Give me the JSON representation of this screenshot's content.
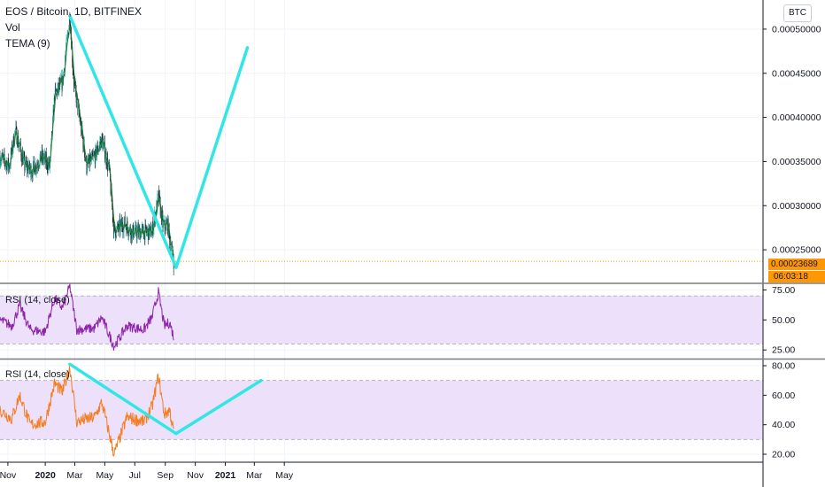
{
  "header": {
    "symbol_line": "EOS / Bitcoin, 1D, BITFINEX",
    "vol_label": "Vol",
    "tema_label": "TEMA (9)"
  },
  "currency_badge": "BTC",
  "last_price_tag": "0.00023689",
  "countdown_tag": "06:03:18",
  "colors": {
    "up": "#26a69a",
    "down": "#131722",
    "tema": "#1e7b31",
    "trend_line": "#33e6e6",
    "rsi1": "#8e24aa",
    "rsi2": "#f57c1f",
    "rsi_band": "#ede0fb",
    "price_tag": "#ff9800"
  },
  "chart_data": [
    {
      "type": "candlestick",
      "pane": "price",
      "yaxis_ticks": [
        "0.00050000",
        "0.00045000",
        "0.00040000",
        "0.00035000",
        "0.00030000",
        "0.00025000"
      ],
      "ylim": [
        0.00022,
        0.00053
      ],
      "xaxis_ticks": [
        "Nov",
        "2020",
        "Mar",
        "May",
        "Jul",
        "Sep",
        "Nov",
        "2021",
        "Mar",
        "May"
      ],
      "last_price": 0.00023689,
      "anchors": [
        {
          "date": "2019-10-01",
          "close": 0.000355
        },
        {
          "date": "2019-10-20",
          "close": 0.000345
        },
        {
          "date": "2019-11-01",
          "close": 0.000385
        },
        {
          "date": "2019-11-20",
          "close": 0.000345
        },
        {
          "date": "2019-12-05",
          "close": 0.00034
        },
        {
          "date": "2019-12-25",
          "close": 0.000355
        },
        {
          "date": "2020-01-10",
          "close": 0.000345
        },
        {
          "date": "2020-01-20",
          "close": 0.000425
        },
        {
          "date": "2020-02-05",
          "close": 0.00044
        },
        {
          "date": "2020-02-20",
          "close": 0.000515
        },
        {
          "date": "2020-02-28",
          "close": 0.00044
        },
        {
          "date": "2020-03-12",
          "close": 0.000395
        },
        {
          "date": "2020-03-25",
          "close": 0.000345
        },
        {
          "date": "2020-04-10",
          "close": 0.000355
        },
        {
          "date": "2020-04-25",
          "close": 0.000375
        },
        {
          "date": "2020-05-10",
          "close": 0.00034
        },
        {
          "date": "2020-05-20",
          "close": 0.00027
        },
        {
          "date": "2020-06-10",
          "close": 0.00028
        },
        {
          "date": "2020-06-25",
          "close": 0.00027
        },
        {
          "date": "2020-07-15",
          "close": 0.00027
        },
        {
          "date": "2020-08-05",
          "close": 0.00027
        },
        {
          "date": "2020-08-18",
          "close": 0.00031
        },
        {
          "date": "2020-08-28",
          "close": 0.000275
        },
        {
          "date": "2020-09-05",
          "close": 0.00028
        },
        {
          "date": "2020-09-18",
          "close": 0.000237
        }
      ],
      "trend_lines": [
        {
          "from": {
            "date": "2020-02-20",
            "value": 0.000515
          },
          "to": {
            "date": "2020-09-23",
            "value": 0.00023
          }
        },
        {
          "from": {
            "date": "2020-09-23",
            "value": 0.00023
          },
          "to": {
            "date": "2021-02-15",
            "value": 0.000479
          }
        }
      ]
    },
    {
      "type": "line",
      "pane": "rsi1",
      "label": "RSI (14, close)",
      "yaxis_ticks": [
        "75.00",
        "50.00",
        "25.00"
      ],
      "ylim": [
        17,
        80
      ],
      "band": [
        30,
        70
      ],
      "anchors": [
        {
          "date": "2019-10-01",
          "value": 50
        },
        {
          "date": "2019-10-25",
          "value": 45
        },
        {
          "date": "2019-11-10",
          "value": 62
        },
        {
          "date": "2019-12-01",
          "value": 42
        },
        {
          "date": "2020-01-01",
          "value": 40
        },
        {
          "date": "2020-01-20",
          "value": 68
        },
        {
          "date": "2020-02-05",
          "value": 60
        },
        {
          "date": "2020-02-20",
          "value": 78
        },
        {
          "date": "2020-03-05",
          "value": 42
        },
        {
          "date": "2020-04-10",
          "value": 43
        },
        {
          "date": "2020-04-25",
          "value": 52
        },
        {
          "date": "2020-05-20",
          "value": 28
        },
        {
          "date": "2020-06-15",
          "value": 45
        },
        {
          "date": "2020-07-20",
          "value": 42
        },
        {
          "date": "2020-08-05",
          "value": 52
        },
        {
          "date": "2020-08-18",
          "value": 73
        },
        {
          "date": "2020-08-30",
          "value": 45
        },
        {
          "date": "2020-09-10",
          "value": 48
        },
        {
          "date": "2020-09-18",
          "value": 36
        }
      ]
    },
    {
      "type": "line",
      "pane": "rsi2",
      "label": "RSI (14, close)",
      "yaxis_ticks": [
        "80.00",
        "60.00",
        "40.00",
        "20.00"
      ],
      "ylim": [
        17,
        82
      ],
      "band": [
        30,
        70
      ],
      "anchors": [
        {
          "date": "2019-10-01",
          "value": 50
        },
        {
          "date": "2019-10-25",
          "value": 44
        },
        {
          "date": "2019-11-10",
          "value": 60
        },
        {
          "date": "2019-12-01",
          "value": 40
        },
        {
          "date": "2020-01-01",
          "value": 42
        },
        {
          "date": "2020-01-20",
          "value": 68
        },
        {
          "date": "2020-02-05",
          "value": 62
        },
        {
          "date": "2020-02-20",
          "value": 79
        },
        {
          "date": "2020-03-05",
          "value": 42
        },
        {
          "date": "2020-04-10",
          "value": 45
        },
        {
          "date": "2020-04-25",
          "value": 55
        },
        {
          "date": "2020-05-20",
          "value": 20
        },
        {
          "date": "2020-06-15",
          "value": 45
        },
        {
          "date": "2020-07-20",
          "value": 42
        },
        {
          "date": "2020-08-05",
          "value": 52
        },
        {
          "date": "2020-08-18",
          "value": 73
        },
        {
          "date": "2020-08-30",
          "value": 47
        },
        {
          "date": "2020-09-10",
          "value": 50
        },
        {
          "date": "2020-09-18",
          "value": 35
        }
      ],
      "trend_lines": [
        {
          "from": {
            "date": "2020-02-20",
            "value": 81
          },
          "to": {
            "date": "2020-09-23",
            "value": 34
          }
        },
        {
          "from": {
            "date": "2020-09-23",
            "value": 34
          },
          "to": {
            "date": "2021-03-15",
            "value": 70
          }
        }
      ]
    }
  ]
}
